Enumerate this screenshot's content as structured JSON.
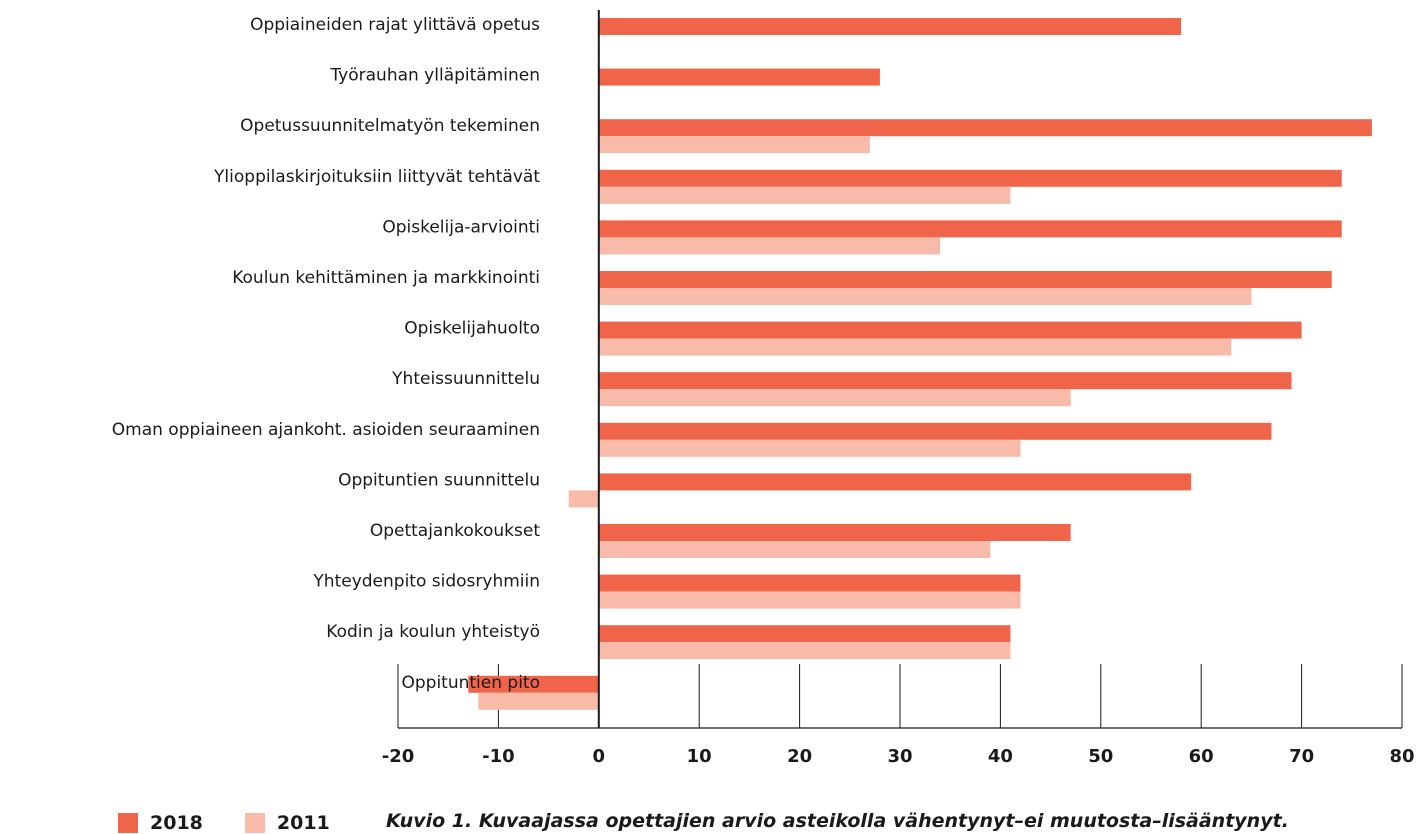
{
  "chart_data": {
    "type": "bar",
    "orientation": "horizontal",
    "categories": [
      "Oppiaineiden rajat ylittävä opetus",
      "Työrauhan ylläpitäminen",
      "Opetussuunnitelmatyön tekeminen",
      "Ylioppilaskirjoituksiin liittyvät tehtävät",
      "Opiskelija-arviointi",
      "Koulun kehittäminen ja markkinointi",
      "Opiskelijahuolto",
      "Yhteissuunnittelu",
      "Oman oppiaineen ajankoht. asioiden seuraaminen",
      "Oppituntien suunnittelu",
      "Opettajankokoukset",
      "Yhteydenpito sidosryhmiin",
      "Kodin ja koulun yhteistyö",
      "Oppituntien pito"
    ],
    "series": [
      {
        "name": "2018",
        "color": "#f0644a",
        "values": [
          58,
          28,
          77,
          74,
          74,
          73,
          70,
          69,
          67,
          59,
          47,
          42,
          41,
          -13
        ]
      },
      {
        "name": "2011",
        "color": "#f8bba9",
        "values": [
          null,
          null,
          27,
          41,
          34,
          65,
          63,
          47,
          42,
          -3,
          39,
          42,
          41,
          -12
        ]
      }
    ],
    "xlim": [
      -20,
      80
    ],
    "xticks": [
      "-20",
      "-10",
      "0",
      "10",
      "20",
      "30",
      "40",
      "50",
      "60",
      "70",
      "80"
    ],
    "legend_position": "bottom-left",
    "caption": "Kuvio 1. Kuvaajassa opettajien arvio asteikolla vähentynyt–ei muutosta–lisääntynyt."
  }
}
